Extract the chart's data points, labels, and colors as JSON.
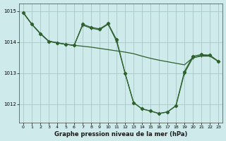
{
  "title": "Graphe pression niveau de la mer (hPa)",
  "background_color": "#ceeaea",
  "grid_color": "#a8c8c8",
  "line_color": "#2d612d",
  "xlim": [
    -0.5,
    23.5
  ],
  "ylim": [
    1011.4,
    1015.25
  ],
  "yticks": [
    1012,
    1013,
    1014,
    1015
  ],
  "xticks": [
    0,
    1,
    2,
    3,
    4,
    5,
    6,
    7,
    8,
    9,
    10,
    11,
    12,
    13,
    14,
    15,
    16,
    17,
    18,
    19,
    20,
    21,
    22,
    23
  ],
  "s1": [
    1014.95,
    1014.58,
    1014.28,
    1014.03,
    1013.98,
    1013.93,
    1013.9,
    1013.87,
    1013.84,
    1013.8,
    1013.76,
    1013.72,
    1013.68,
    1013.63,
    1013.55,
    1013.48,
    1013.42,
    1013.37,
    1013.32,
    1013.27,
    1013.5,
    1013.55,
    1013.55,
    1013.38
  ],
  "s2": [
    1014.95,
    1014.58,
    1014.28,
    1014.03,
    1013.98,
    1013.93,
    1013.9,
    1014.58,
    1014.48,
    1014.43,
    1014.6,
    1014.08,
    1013.0,
    1012.05,
    1011.85,
    1011.78,
    1011.7,
    1011.75,
    1011.95,
    1013.05,
    1013.55,
    1013.6,
    1013.58,
    1013.38
  ],
  "s3": [
    1014.95,
    1014.58,
    1014.28,
    1014.03,
    1013.98,
    1013.93,
    1013.9,
    1014.55,
    1014.45,
    1014.4,
    1014.58,
    1014.03,
    1013.0,
    1012.05,
    1011.85,
    1011.78,
    1011.7,
    1011.75,
    1011.95,
    1013.0,
    1013.5,
    1013.57,
    1013.58,
    1013.38
  ]
}
